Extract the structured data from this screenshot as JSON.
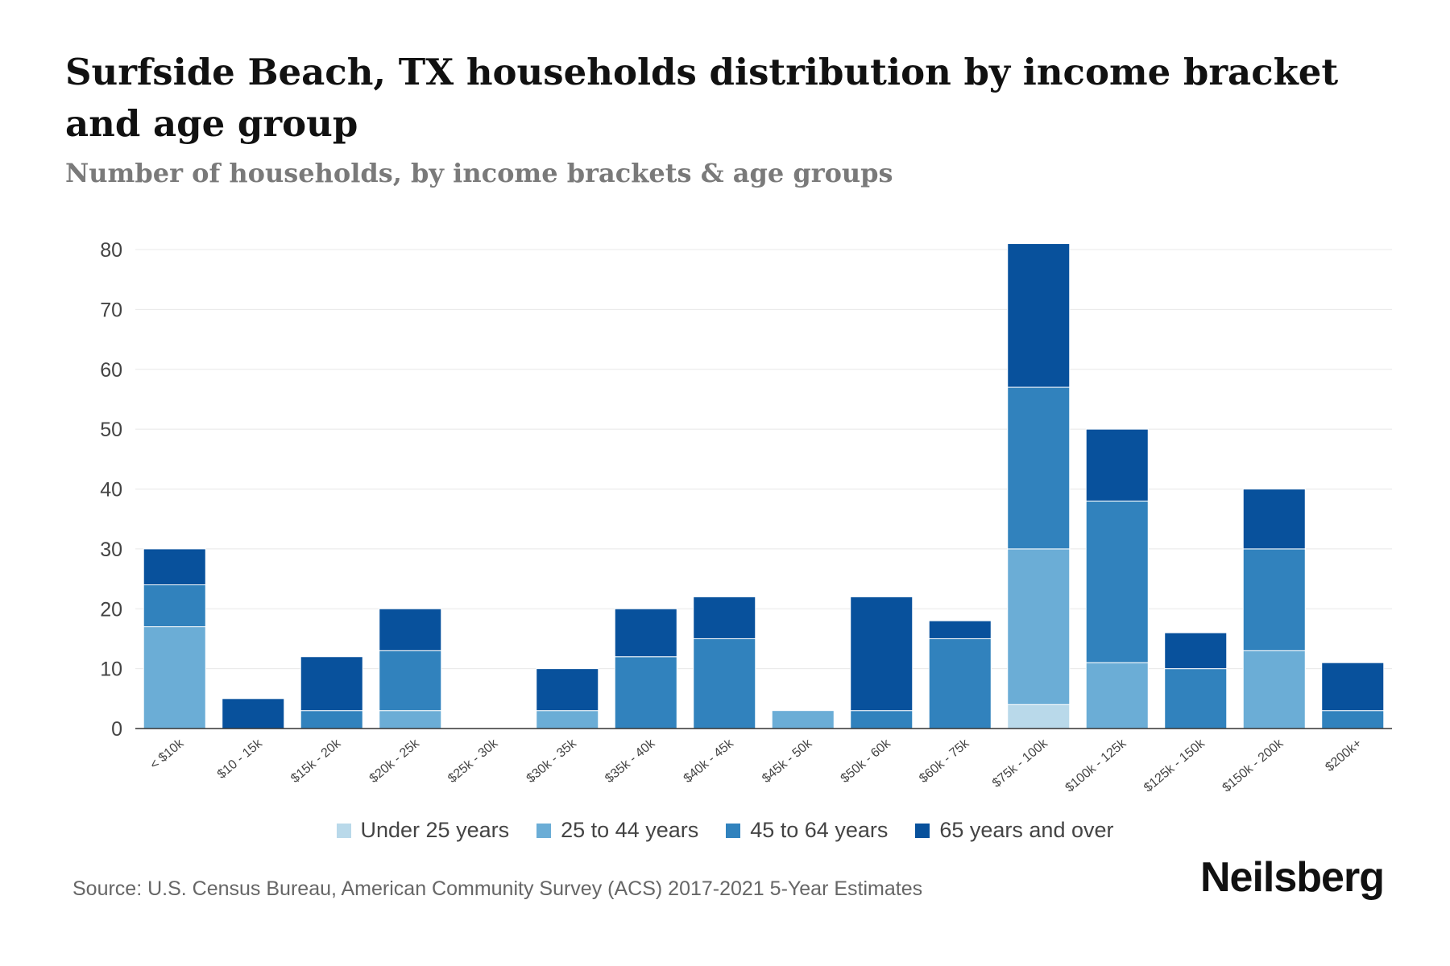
{
  "colors": {
    "under25": "#b9d9ea",
    "age25to44": "#6badd6",
    "age45to64": "#3182bd",
    "age65plus": "#08519c",
    "grid": "#e8e8e8",
    "axis": "#333333"
  },
  "source": "Source: U.S. Census Bureau, American Community Survey (ACS) 2017-2021 5-Year Estimates",
  "brand": "Neilsberg",
  "chart_data": {
    "type": "bar",
    "stacked": true,
    "title": "Surfside Beach, TX households distribution by income bracket and age group",
    "subtitle": "Number of households, by income brackets & age groups",
    "xlabel": "",
    "ylabel": "",
    "ylim": [
      0,
      80
    ],
    "yticks": [
      0,
      10,
      20,
      30,
      40,
      50,
      60,
      70,
      80
    ],
    "grid": true,
    "legend_position": "bottom",
    "categories": [
      "< $10k",
      "$10 - 15k",
      "$15k - 20k",
      "$20k - 25k",
      "$25k - 30k",
      "$30k - 35k",
      "$35k - 40k",
      "$40k - 45k",
      "$45k - 50k",
      "$50k - 60k",
      "$60k - 75k",
      "$75k - 100k",
      "$100k - 125k",
      "$125k - 150k",
      "$150k - 200k",
      "$200k+"
    ],
    "series": [
      {
        "name": "Under 25 years",
        "color_key": "under25",
        "values": [
          0,
          0,
          0,
          0,
          0,
          0,
          0,
          0,
          0,
          0,
          0,
          4,
          0,
          0,
          0,
          0
        ]
      },
      {
        "name": "25 to 44 years",
        "color_key": "age25to44",
        "values": [
          17,
          0,
          0,
          3,
          0,
          3,
          0,
          0,
          3,
          0,
          0,
          26,
          11,
          0,
          13,
          0
        ]
      },
      {
        "name": "45 to 64 years",
        "color_key": "age45to64",
        "values": [
          7,
          0,
          3,
          10,
          0,
          0,
          12,
          15,
          0,
          3,
          15,
          27,
          27,
          10,
          17,
          3
        ]
      },
      {
        "name": "65 years and over",
        "color_key": "age65plus",
        "values": [
          6,
          5,
          9,
          7,
          0,
          7,
          8,
          7,
          0,
          19,
          3,
          24,
          12,
          6,
          10,
          8
        ]
      }
    ]
  }
}
